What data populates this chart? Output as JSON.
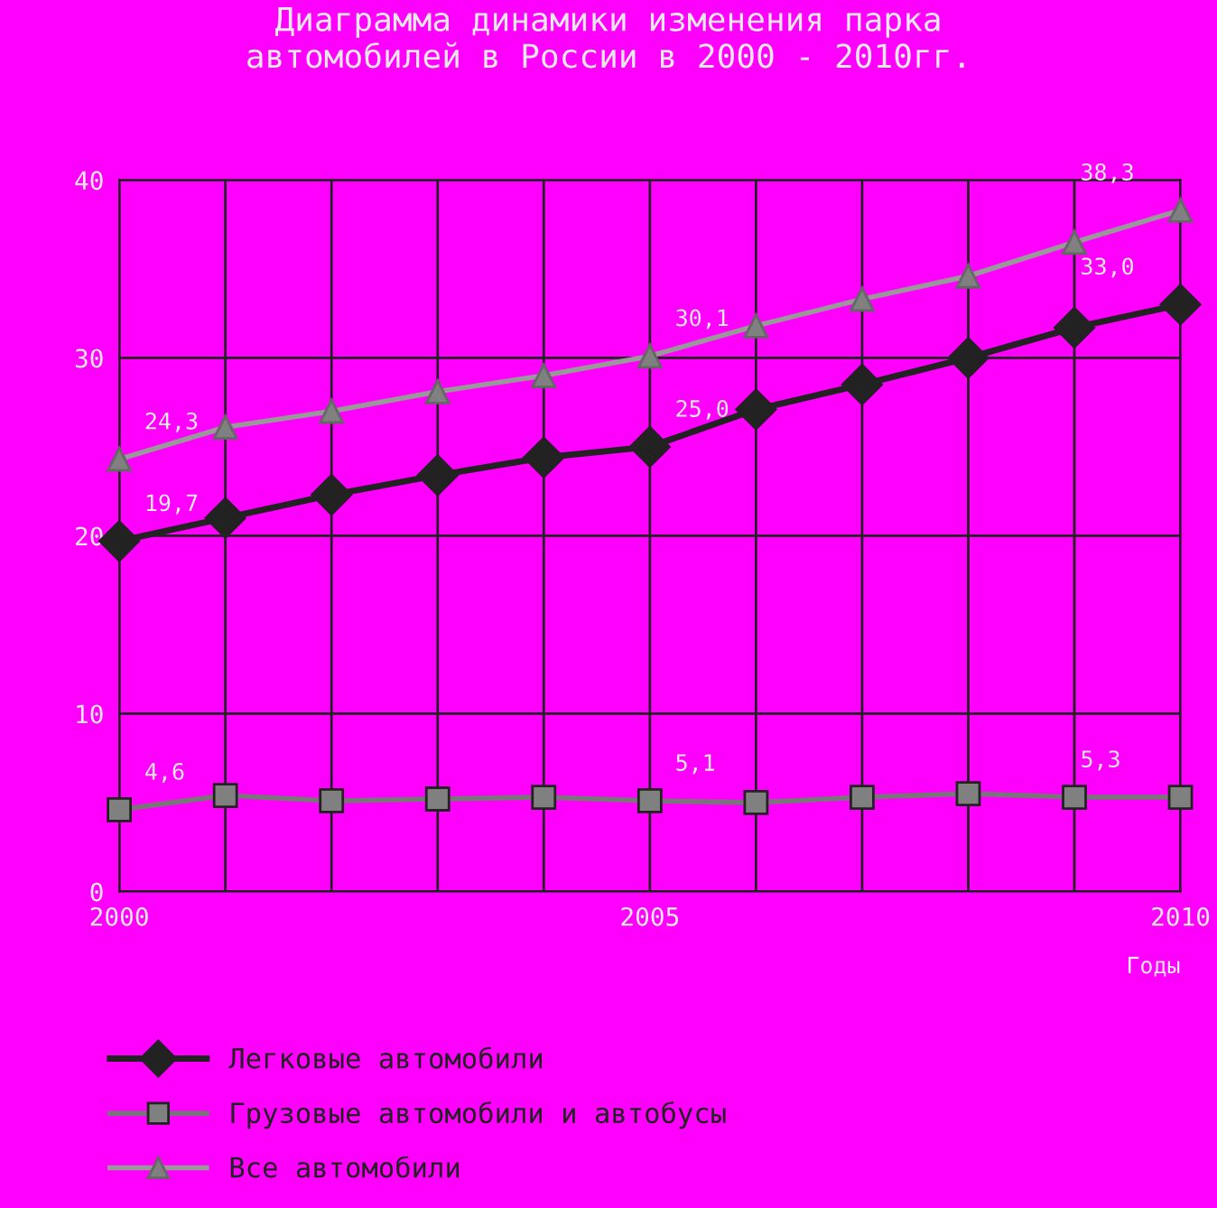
{
  "chart_data": {
    "type": "line",
    "title": "Диаграмма динамики изменения парка\nавтомобилей в России в 2000 - 2010гг.",
    "xlabel": "Годы",
    "x": [
      2000,
      2001,
      2002,
      2003,
      2004,
      2005,
      2006,
      2007,
      2008,
      2009,
      2010
    ],
    "series": [
      {
        "name": "Легковые автомобили",
        "color": "#222222",
        "marker": "diamond",
        "values": [
          19.7,
          21.0,
          22.3,
          23.4,
          24.4,
          25.0,
          27.1,
          28.5,
          30.0,
          31.7,
          33.0
        ]
      },
      {
        "name": "Грузовые автомобили и автобусы",
        "color": "#777777",
        "marker": "square",
        "values": [
          4.6,
          5.4,
          5.1,
          5.2,
          5.3,
          5.1,
          5.0,
          5.3,
          5.5,
          5.3,
          5.3
        ]
      },
      {
        "name": "Все автомобили",
        "color": "#999999",
        "marker": "triangle",
        "values": [
          24.3,
          26.1,
          27.0,
          28.1,
          29.0,
          30.1,
          31.8,
          33.3,
          34.6,
          36.5,
          38.3
        ]
      }
    ],
    "annotations": [
      {
        "text": "19,7",
        "x": 2000,
        "y": 19.7
      },
      {
        "text": "25,0",
        "x": 2005,
        "y": 25.0
      },
      {
        "text": "33,0",
        "x": 2010,
        "y": 33.0
      },
      {
        "text": "4,6",
        "x": 2000,
        "y": 4.6
      },
      {
        "text": "5,1",
        "x": 2005,
        "y": 5.1
      },
      {
        "text": "5,3",
        "x": 2010,
        "y": 5.3
      },
      {
        "text": "24,3",
        "x": 2000,
        "y": 24.3
      },
      {
        "text": "30,1",
        "x": 2005,
        "y": 30.1
      },
      {
        "text": "38,3",
        "x": 2010,
        "y": 38.3
      }
    ],
    "xlim": [
      2000,
      2010
    ],
    "xticks": [
      2000,
      {
        "value": 2001,
        "label": null
      },
      {
        "value": 2002,
        "label": null
      },
      {
        "value": 2003,
        "label": null
      },
      {
        "value": 2004,
        "label": null
      },
      2005,
      {
        "value": 2006,
        "label": null
      },
      {
        "value": 2007,
        "label": null
      },
      {
        "value": 2008,
        "label": null
      },
      {
        "value": 2009,
        "label": null
      },
      2010
    ],
    "ylim": [
      0,
      40
    ],
    "yticks": [
      0,
      10,
      20,
      30,
      40
    ],
    "grid": true,
    "legend": "bottom",
    "line_style": "solid"
  }
}
